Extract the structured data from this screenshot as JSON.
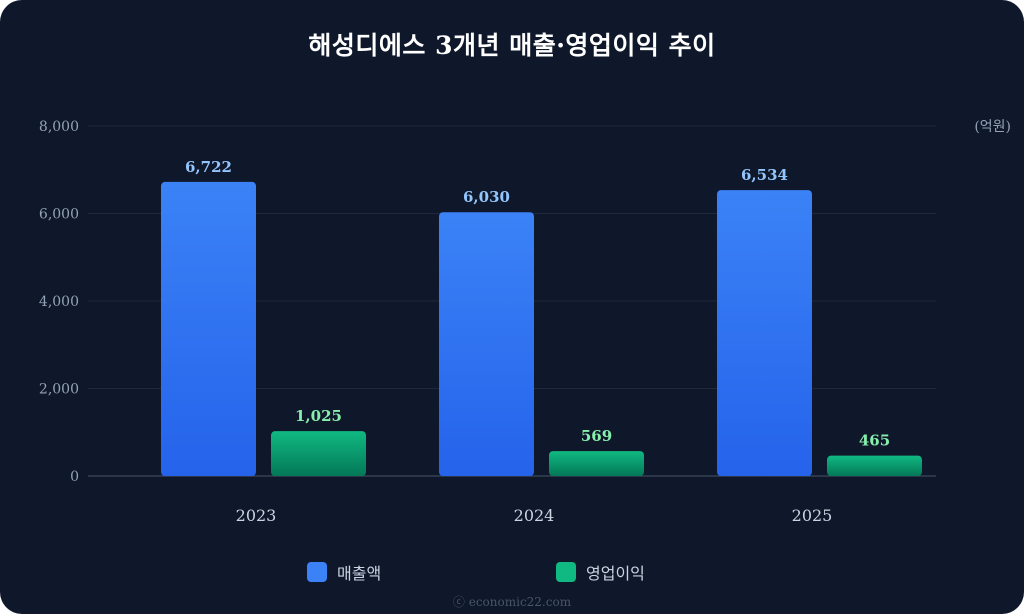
{
  "chart_data": {
    "type": "bar",
    "title": "해성디에스 3개년 매출·영업이익 추이",
    "unit_label": "(억원)",
    "categories": [
      "2023",
      "2024",
      "2025"
    ],
    "series": [
      {
        "name": "매출액",
        "values": [
          6722,
          6030,
          6534
        ],
        "value_labels": [
          "6,722",
          "6,030",
          "6,534"
        ],
        "color_top": "#3b82f6",
        "color_bottom": "#2563eb",
        "label_color": "#93c5fd"
      },
      {
        "name": "영업이익",
        "values": [
          1025,
          569,
          465
        ],
        "value_labels": [
          "1,025",
          "569",
          "465"
        ],
        "color_top": "#10b981",
        "color_bottom": "#047857",
        "label_color": "#86efac"
      }
    ],
    "ylim": [
      0,
      8000
    ],
    "y_ticks": [
      0,
      2000,
      4000,
      6000,
      8000
    ],
    "y_tick_labels": [
      "0",
      "2,000",
      "4,000",
      "6,000",
      "8,000"
    ],
    "grid": true,
    "legend_position": "bottom"
  },
  "watermark": "ⓒ economic22.com"
}
